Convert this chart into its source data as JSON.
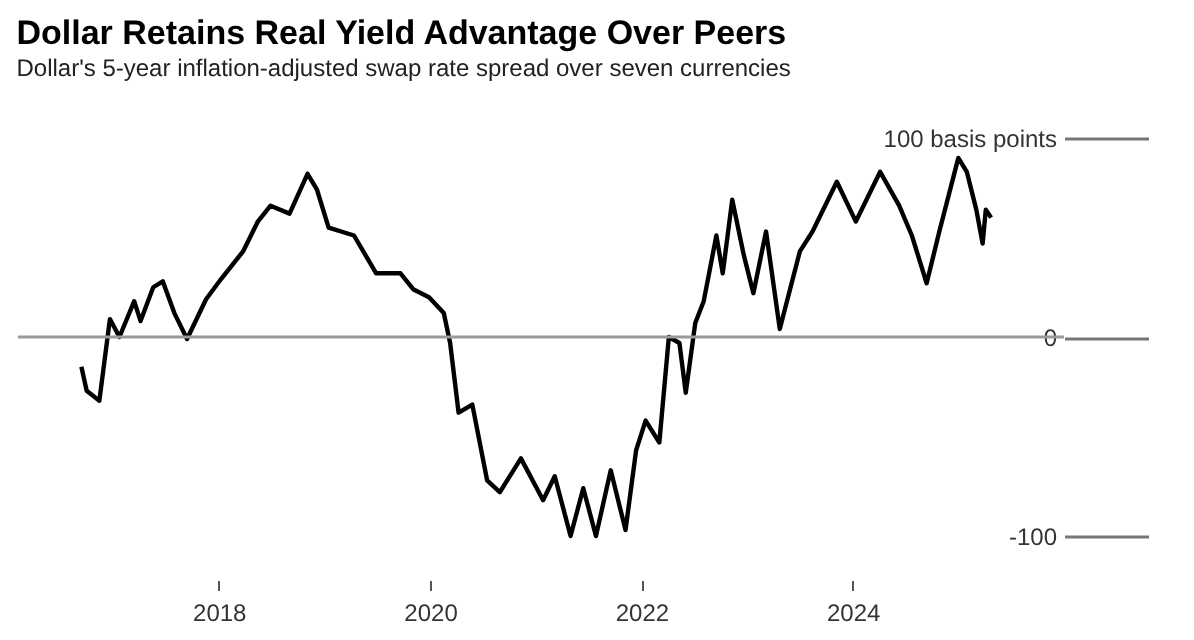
{
  "chart_data": {
    "type": "line",
    "title": "Dollar Retains Real Yield Advantage Over Peers",
    "subtitle": "Dollar's 5-year inflation-adjusted swap rate spread over seven currencies",
    "x": [
      2016.7,
      2016.75,
      2016.87,
      2016.97,
      2017.06,
      2017.2,
      2017.26,
      2017.38,
      2017.47,
      2017.58,
      2017.7,
      2017.88,
      2018.02,
      2018.23,
      2018.37,
      2018.49,
      2018.67,
      2018.84,
      2018.93,
      2019.04,
      2019.28,
      2019.49,
      2019.72,
      2019.84,
      2019.99,
      2020.13,
      2020.19,
      2020.27,
      2020.4,
      2020.54,
      2020.66,
      2020.86,
      2021.07,
      2021.18,
      2021.33,
      2021.45,
      2021.57,
      2021.71,
      2021.85,
      2021.95,
      2022.04,
      2022.17,
      2022.26,
      2022.36,
      2022.42,
      2022.51,
      2022.59,
      2022.71,
      2022.77,
      2022.86,
      2022.97,
      2023.06,
      2023.18,
      2023.31,
      2023.5,
      2023.62,
      2023.85,
      2024.03,
      2024.26,
      2024.44,
      2024.56,
      2024.7,
      2024.82,
      2025.0,
      2025.08,
      2025.17,
      2025.23,
      2025.26,
      2025.31
    ],
    "series": [
      {
        "color": "#000000",
        "values": [
          -15,
          -27,
          -32,
          9,
          0,
          18,
          8,
          25,
          28,
          12,
          -1,
          19,
          29,
          43,
          58,
          66,
          62,
          82,
          74,
          55,
          51,
          32,
          32,
          24,
          20,
          12,
          -3,
          -38,
          -34,
          -72,
          -78,
          -61,
          -82,
          -70,
          -100,
          -76,
          -100,
          -67,
          -97,
          -57,
          -42,
          -53,
          0,
          -3,
          -28,
          7,
          18,
          51,
          32,
          69,
          41,
          22,
          53,
          4,
          43,
          53,
          78,
          58,
          83,
          66,
          51,
          27,
          53,
          90,
          83,
          64,
          47,
          64,
          60
        ]
      }
    ],
    "xlim": [
      2016.1,
      2026.0
    ],
    "xticks": [
      2018,
      2020,
      2022,
      2024
    ],
    "ylim": [
      -100,
      100
    ],
    "yticks": [
      {
        "value": 100,
        "label": "100 basis points"
      },
      0,
      -100
    ],
    "ref_lines": [
      {
        "axis": "y",
        "value": 0,
        "color": "#999999"
      }
    ],
    "grid": false,
    "line_style": "solid",
    "marker": "none"
  }
}
